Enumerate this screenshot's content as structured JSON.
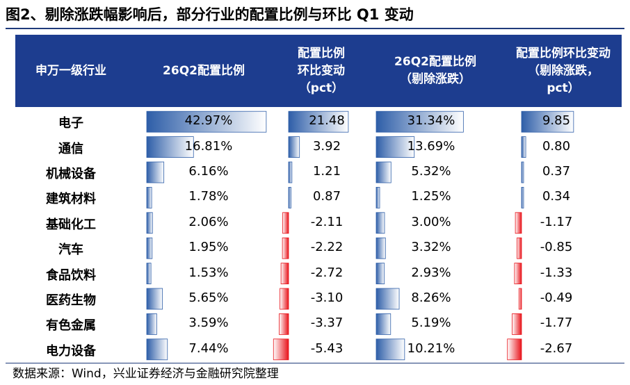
{
  "title": "图2、剔除涨跌幅影响后，部分行业的配置比例与环比 Q1 变动",
  "source": "数据来源：Wind，兴业证券经济与金融研究院整理",
  "colors": {
    "header_bg": "#1d3d8f",
    "header_text": "#ffffff",
    "positive_bar": "#2e5ea8",
    "negative_bar": "#e8141b"
  },
  "chart_data": {
    "type": "table",
    "columns": [
      "申万一级行业",
      "26Q2配置比例",
      "配置比例\n环比变动\n（pct）",
      "26Q2配置比例\n（剔除涨跌）",
      "配置比例环比变动\n（剔除涨跌，\npct）"
    ],
    "rows": [
      {
        "industry": "电子",
        "values": [
          "42.97%",
          "21.48",
          "31.34%",
          "9.85"
        ]
      },
      {
        "industry": "通信",
        "values": [
          "16.81%",
          "3.92",
          "13.69%",
          "0.80"
        ]
      },
      {
        "industry": "机械设备",
        "values": [
          "6.16%",
          "1.21",
          "5.32%",
          "0.37"
        ]
      },
      {
        "industry": "建筑材料",
        "values": [
          "1.78%",
          "0.87",
          "1.25%",
          "0.34"
        ]
      },
      {
        "industry": "基础化工",
        "values": [
          "2.06%",
          "-2.11",
          "3.00%",
          "-1.17"
        ]
      },
      {
        "industry": "汽车",
        "values": [
          "1.95%",
          "-2.22",
          "3.32%",
          "-0.85"
        ]
      },
      {
        "industry": "食品饮料",
        "values": [
          "1.53%",
          "-2.72",
          "2.93%",
          "-1.33"
        ]
      },
      {
        "industry": "医药生物",
        "values": [
          "5.65%",
          "-3.10",
          "8.26%",
          "-0.49"
        ]
      },
      {
        "industry": "有色金属",
        "values": [
          "3.59%",
          "-3.37",
          "5.19%",
          "-1.77"
        ]
      },
      {
        "industry": "电力设备",
        "values": [
          "7.44%",
          "-5.43",
          "10.21%",
          "-2.67"
        ]
      }
    ],
    "numeric": {
      "col1": [
        42.97,
        16.81,
        6.16,
        1.78,
        2.06,
        1.95,
        1.53,
        5.65,
        3.59,
        7.44
      ],
      "col2": [
        21.48,
        3.92,
        1.21,
        0.87,
        -2.11,
        -2.22,
        -2.72,
        -3.1,
        -3.37,
        -5.43
      ],
      "col3": [
        31.34,
        13.69,
        5.32,
        1.25,
        3.0,
        3.32,
        2.93,
        8.26,
        5.19,
        10.21
      ],
      "col4": [
        9.85,
        0.8,
        0.37,
        0.34,
        -1.17,
        -0.85,
        -1.33,
        -0.49,
        -1.77,
        -2.67
      ]
    }
  }
}
